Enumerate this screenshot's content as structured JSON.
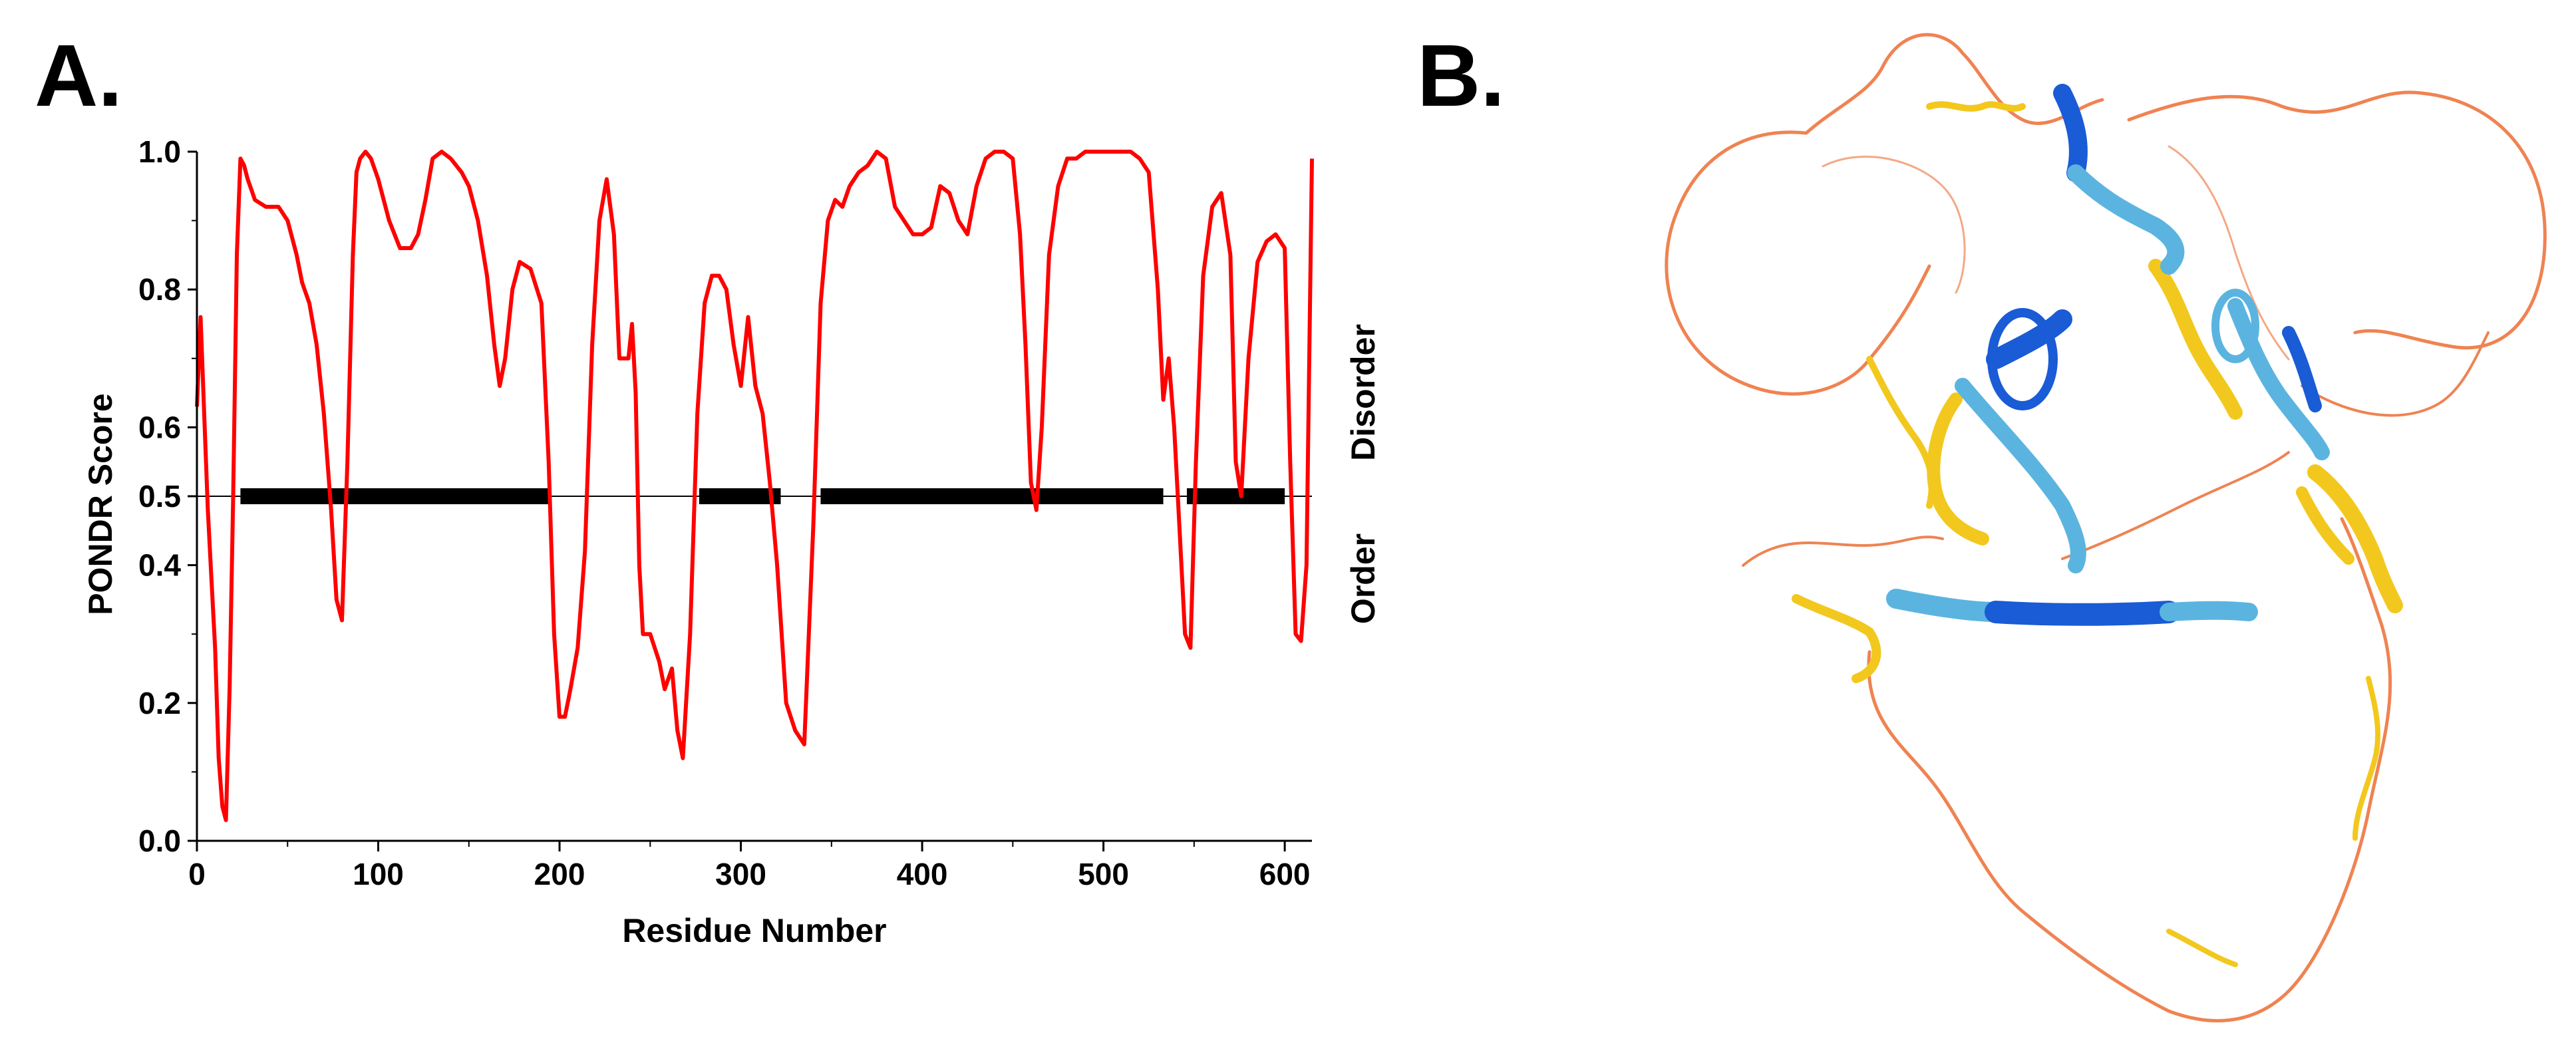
{
  "panels": {
    "a": "A.",
    "b": "B."
  },
  "chart_data": {
    "type": "line",
    "title": "",
    "xlabel": "Residue Number",
    "ylabel": "PONDR Score",
    "xlim": [
      0,
      615
    ],
    "ylim": [
      0.0,
      1.0
    ],
    "xticks": [
      0,
      100,
      200,
      300,
      400,
      500,
      600
    ],
    "yticks": [
      0.0,
      0.2,
      0.4,
      0.5,
      0.6,
      0.8,
      1.0
    ],
    "ytick_labels": [
      "0.0",
      "0.2",
      "0.4",
      "0.5",
      "0.6",
      "0.8",
      "1.0"
    ],
    "threshold": 0.5,
    "region_labels": {
      "above": "Disorder",
      "below": "Order"
    },
    "series": [
      {
        "name": "PONDR score",
        "color": "#ff0000",
        "x": [
          0,
          2,
          4,
          6,
          8,
          10,
          12,
          14,
          16,
          18,
          20,
          22,
          24,
          26,
          28,
          32,
          38,
          45,
          50,
          55,
          58,
          62,
          66,
          70,
          74,
          77,
          80,
          83,
          86,
          88,
          90,
          93,
          96,
          100,
          106,
          112,
          118,
          122,
          126,
          130,
          135,
          140,
          146,
          150,
          155,
          160,
          164,
          167,
          170,
          174,
          178,
          184,
          190,
          194,
          197,
          200,
          203,
          206,
          210,
          214,
          218,
          222,
          226,
          230,
          233,
          236,
          238,
          240,
          242,
          244,
          246,
          250,
          255,
          258,
          262,
          265,
          268,
          272,
          276,
          280,
          284,
          288,
          292,
          296,
          300,
          304,
          308,
          312,
          316,
          320,
          325,
          330,
          335,
          340,
          344,
          348,
          352,
          356,
          360,
          365,
          370,
          375,
          380,
          385,
          390,
          395,
          400,
          405,
          410,
          415,
          420,
          425,
          430,
          435,
          440,
          445,
          450,
          454,
          457,
          460,
          463,
          466,
          470,
          475,
          480,
          485,
          490,
          495,
          500,
          505,
          510,
          515,
          520,
          525,
          530,
          533,
          536,
          539,
          542,
          545,
          548,
          551,
          555,
          560,
          565,
          570,
          573,
          576,
          580,
          585,
          590,
          595,
          600,
          603,
          606,
          609,
          612,
          615
        ],
        "values": [
          0.63,
          0.76,
          0.62,
          0.48,
          0.38,
          0.28,
          0.12,
          0.05,
          0.03,
          0.22,
          0.5,
          0.85,
          0.99,
          0.98,
          0.96,
          0.93,
          0.92,
          0.92,
          0.9,
          0.85,
          0.81,
          0.78,
          0.72,
          0.62,
          0.48,
          0.35,
          0.32,
          0.55,
          0.85,
          0.97,
          0.99,
          1.0,
          0.99,
          0.96,
          0.9,
          0.86,
          0.86,
          0.88,
          0.93,
          0.99,
          1.0,
          0.99,
          0.97,
          0.95,
          0.9,
          0.82,
          0.72,
          0.66,
          0.7,
          0.8,
          0.84,
          0.83,
          0.78,
          0.55,
          0.3,
          0.18,
          0.18,
          0.22,
          0.28,
          0.42,
          0.72,
          0.9,
          0.96,
          0.88,
          0.7,
          0.7,
          0.7,
          0.75,
          0.65,
          0.4,
          0.3,
          0.3,
          0.26,
          0.22,
          0.25,
          0.16,
          0.12,
          0.3,
          0.62,
          0.78,
          0.82,
          0.82,
          0.8,
          0.72,
          0.66,
          0.76,
          0.66,
          0.62,
          0.52,
          0.4,
          0.2,
          0.16,
          0.14,
          0.46,
          0.78,
          0.9,
          0.93,
          0.92,
          0.95,
          0.97,
          0.98,
          1.0,
          0.99,
          0.92,
          0.9,
          0.88,
          0.88,
          0.89,
          0.95,
          0.94,
          0.9,
          0.88,
          0.95,
          0.99,
          1.0,
          1.0,
          0.99,
          0.88,
          0.72,
          0.52,
          0.48,
          0.6,
          0.85,
          0.95,
          0.99,
          0.99,
          1.0,
          1.0,
          1.0,
          1.0,
          1.0,
          1.0,
          0.99,
          0.97,
          0.8,
          0.64,
          0.7,
          0.6,
          0.45,
          0.3,
          0.28,
          0.55,
          0.82,
          0.92,
          0.94,
          0.85,
          0.55,
          0.5,
          0.7,
          0.84,
          0.87,
          0.88,
          0.86,
          0.55,
          0.3,
          0.29,
          0.4,
          0.99
        ]
      }
    ],
    "disorder_segments": [
      {
        "start": 24,
        "end": 195
      },
      {
        "start": 277,
        "end": 322
      },
      {
        "start": 344,
        "end": 533
      },
      {
        "start": 546,
        "end": 600
      }
    ]
  },
  "structure": {
    "colors": {
      "very_high": "#1a5bd6",
      "high": "#5bb4e0",
      "low": "#f2c81e",
      "very_low": "#ef8352"
    }
  }
}
